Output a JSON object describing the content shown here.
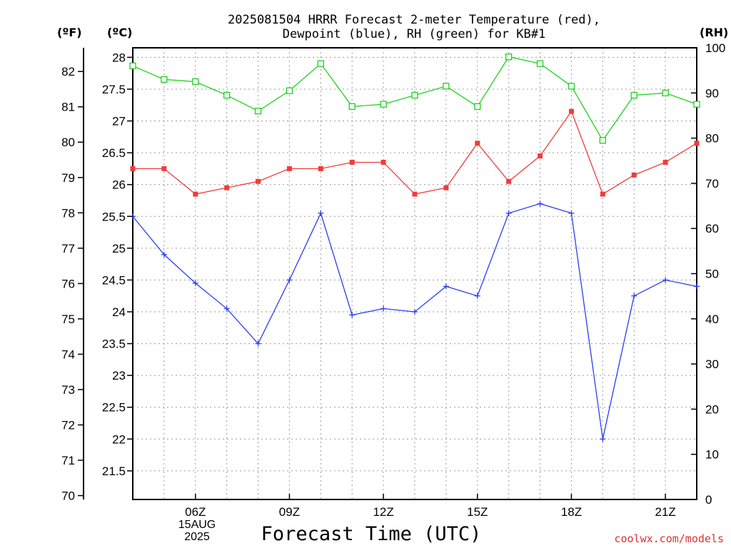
{
  "header": {
    "title_line1": "2025081504 HRRR Forecast 2-meter Temperature (red),",
    "title_line2": "Dewpoint (blue), RH (green) for KB#1",
    "unit_f": "(ºF)",
    "unit_c": "(ºC)",
    "unit_rh": "(RH)"
  },
  "footer": {
    "xlabel": "Forecast Time (UTC)",
    "date_day": "15AUG",
    "date_year": "2025",
    "credit": "coolwx.com/models"
  },
  "chart_data": {
    "type": "line",
    "title": "2025081504 HRRR Forecast 2-meter Temperature (red), Dewpoint (blue), RH (green) for KB#1",
    "xlabel": "Forecast Time (UTC)",
    "x_hours_utc": [
      4,
      5,
      6,
      7,
      8,
      9,
      10,
      11,
      12,
      13,
      14,
      15,
      16,
      17,
      18,
      19,
      20,
      21,
      22
    ],
    "x_tick_hours": [
      6,
      9,
      12,
      15,
      18,
      21
    ],
    "x_tick_labels": [
      "06Z",
      "09Z",
      "12Z",
      "15Z",
      "18Z",
      "21Z"
    ],
    "xlim": [
      4,
      22
    ],
    "y_left_c": {
      "label": "(ºC)",
      "ylim": [
        21.05,
        28.15
      ],
      "ticks": [
        21.5,
        22,
        22.5,
        23,
        23.5,
        24,
        24.5,
        25,
        25.5,
        26,
        26.5,
        27,
        27.5,
        28
      ]
    },
    "y_left_f": {
      "label": "(ºF)",
      "ticks": [
        70,
        71,
        72,
        73,
        74,
        75,
        76,
        77,
        78,
        79,
        80,
        81,
        82
      ]
    },
    "y_right_rh": {
      "label": "(RH)",
      "ylim": [
        0,
        100
      ],
      "ticks": [
        0,
        10,
        20,
        30,
        40,
        50,
        60,
        70,
        80,
        90,
        100
      ]
    },
    "grid": true,
    "series": [
      {
        "name": "Temperature (red)",
        "axis": "celsius",
        "color": "#f03c3c",
        "marker": "filled-square",
        "values": [
          26.25,
          26.25,
          25.85,
          25.95,
          26.05,
          26.25,
          26.25,
          26.35,
          26.35,
          25.85,
          25.95,
          26.65,
          26.05,
          26.45,
          27.15,
          25.85,
          26.15,
          26.35,
          26.65
        ]
      },
      {
        "name": "Dewpoint (blue)",
        "axis": "celsius",
        "color": "#2a3ff0",
        "marker": "plus",
        "values": [
          25.5,
          24.9,
          24.45,
          24.05,
          23.5,
          24.5,
          25.55,
          23.95,
          24.05,
          24.0,
          24.4,
          24.25,
          25.55,
          25.7,
          25.55,
          22.0,
          24.25,
          24.5,
          24.4
        ]
      },
      {
        "name": "RH (green)",
        "axis": "rh",
        "color": "#1ed21e",
        "marker": "open-square",
        "values": [
          96,
          93,
          92.5,
          89.5,
          86,
          90.5,
          96.5,
          87,
          87.5,
          89.5,
          91.5,
          87,
          98,
          96.5,
          91.5,
          79.5,
          89.5,
          90,
          87.5
        ]
      }
    ]
  }
}
